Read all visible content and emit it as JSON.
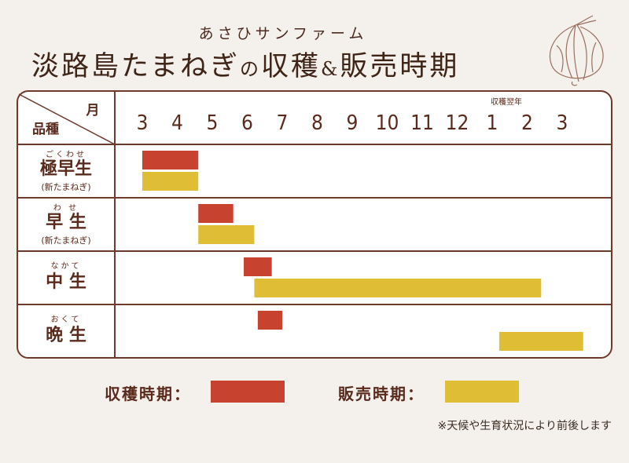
{
  "subtitle": "あさひサンファーム",
  "title": {
    "part1": "淡路島たまねぎ",
    "part2": "の",
    "part3": "収穫",
    "part4": "&",
    "part5": "販売時期"
  },
  "colors": {
    "harvest": "#c8432f",
    "sales": "#dfbd35",
    "frame": "#6e3a2c",
    "text": "#5a2a1c",
    "background": "#f4f1ec"
  },
  "chart_data": {
    "type": "gantt",
    "header": {
      "month_label": "月",
      "variety_label": "品種",
      "next_year_label": "収穫翌年"
    },
    "months": [
      "3",
      "4",
      "5",
      "6",
      "7",
      "8",
      "9",
      "10",
      "11",
      "12",
      "1",
      "2",
      "3"
    ],
    "rows": [
      {
        "name": "極早生",
        "reading": "ごくわせ",
        "note": "(新たまねぎ)",
        "harvest": [
          3.0,
          4.6
        ],
        "sales": [
          3.0,
          4.6
        ]
      },
      {
        "name": "早 生",
        "reading": "わ せ",
        "note": "(新たまねぎ)",
        "harvest": [
          4.6,
          5.6
        ],
        "sales": [
          4.6,
          6.2
        ]
      },
      {
        "name": "中 生",
        "reading": "なかて",
        "note": "",
        "harvest": [
          5.9,
          6.7
        ],
        "sales": [
          6.2,
          14.4
        ]
      },
      {
        "name": "晩 生",
        "reading": "おくて",
        "note": "",
        "harvest": [
          6.3,
          7.0
        ],
        "sales": [
          13.2,
          15.6
        ]
      }
    ]
  },
  "legend": {
    "harvest_label": "収穫時期：",
    "sales_label": "販売時期："
  },
  "note": "※天候や生育状況により前後します",
  "icons": {
    "decoration": "onion-illustration"
  }
}
